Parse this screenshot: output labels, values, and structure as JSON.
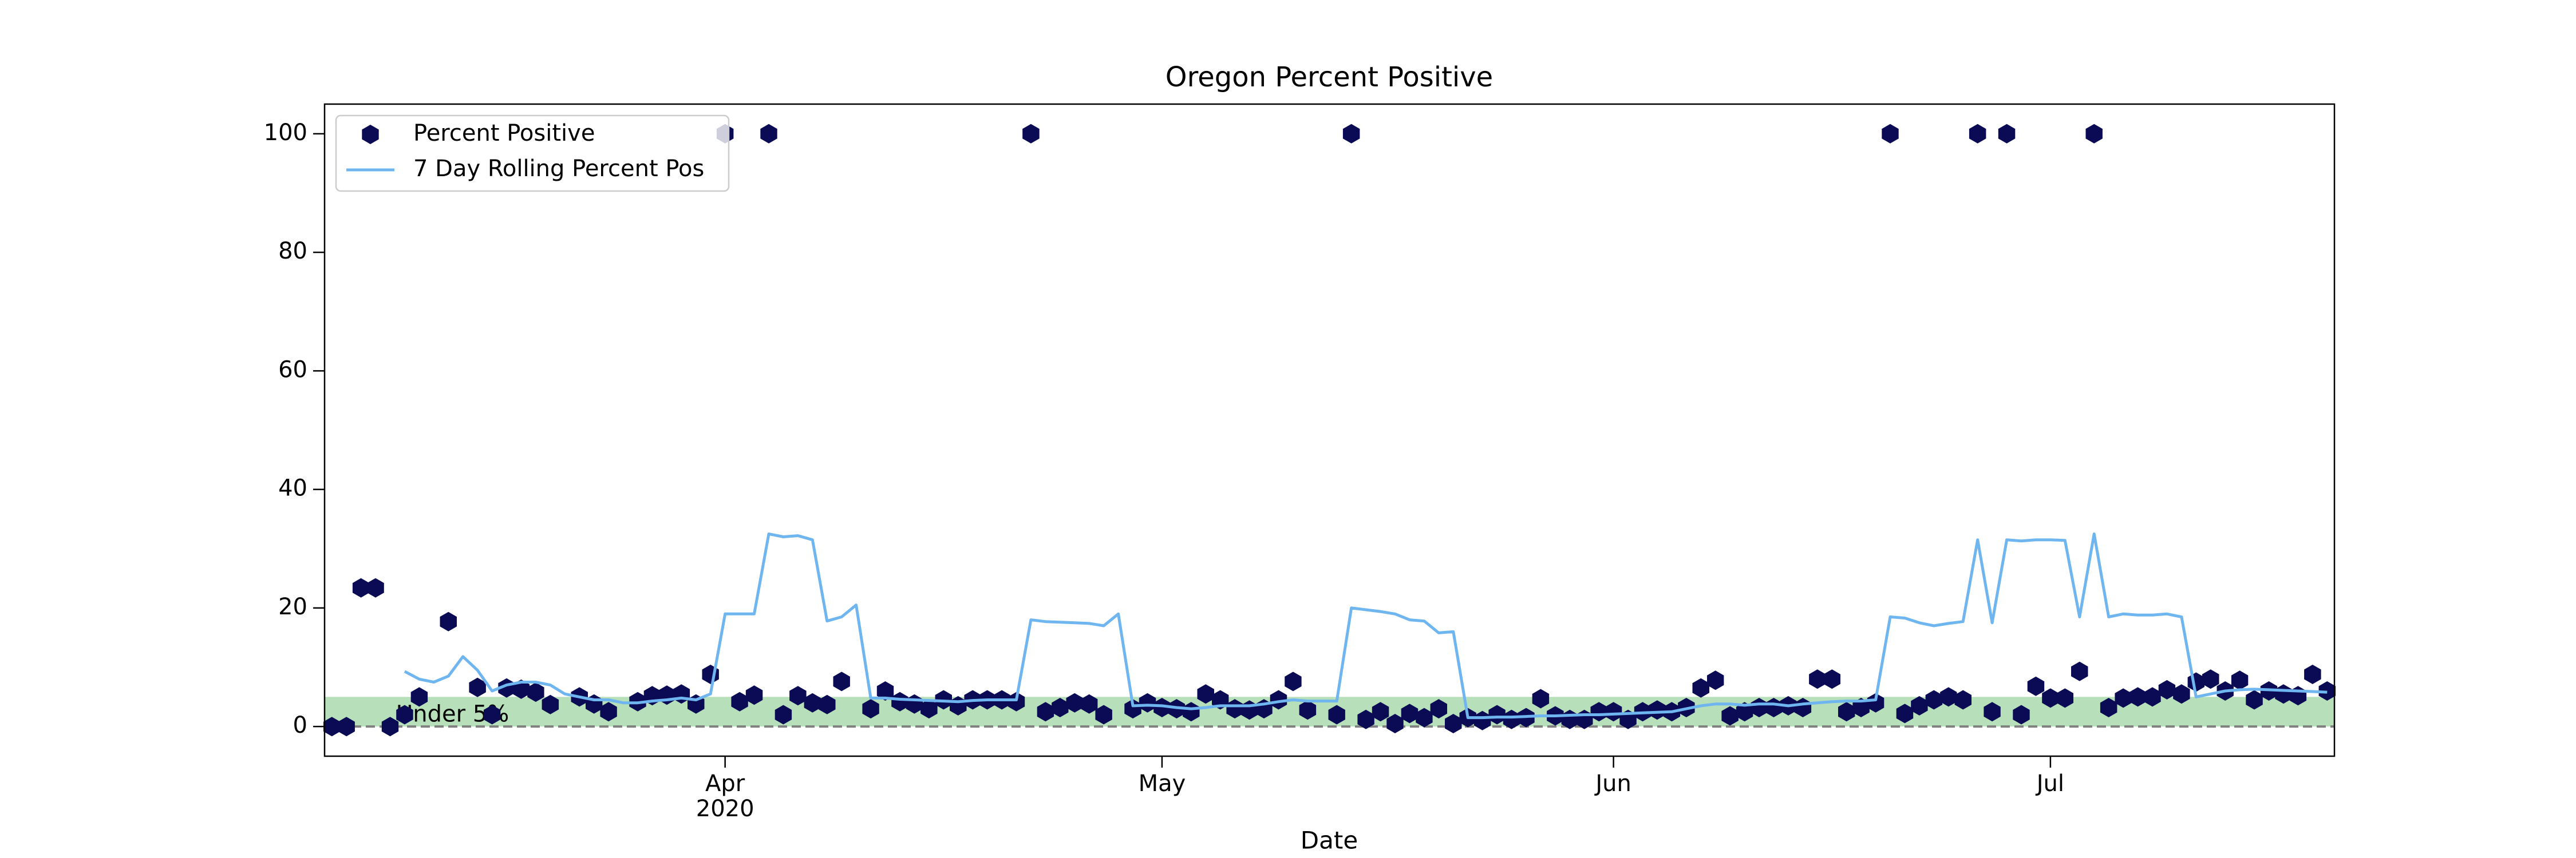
{
  "chart_data": {
    "type": "scatter",
    "title": "Oregon Percent Positive",
    "x_label": "Date",
    "categories": [
      null,
      null,
      null,
      null,
      null,
      null,
      null,
      null,
      null,
      null,
      null,
      null,
      null,
      null,
      null,
      null,
      null,
      null,
      null,
      null,
      null,
      null,
      null,
      null,
      null,
      null,
      null,
      "Apr\n2020",
      null,
      null,
      null,
      null,
      null,
      null,
      null,
      null,
      null,
      null,
      null,
      null,
      null,
      null,
      null,
      null,
      null,
      null,
      null,
      null,
      null,
      null,
      null,
      null,
      null,
      null,
      null,
      null,
      null,
      "May",
      null,
      null,
      null,
      null,
      null,
      null,
      null,
      null,
      null,
      null,
      null,
      null,
      null,
      null,
      null,
      null,
      null,
      null,
      null,
      null,
      null,
      null,
      null,
      null,
      null,
      null,
      null,
      null,
      null,
      null,
      "Jun",
      null,
      null,
      null,
      null,
      null,
      null,
      null,
      null,
      null,
      null,
      null,
      null,
      null,
      null,
      null,
      null,
      null,
      null,
      null,
      null,
      null,
      null,
      null,
      null,
      null,
      null,
      null,
      null,
      null,
      "Jul",
      null,
      null,
      null,
      null,
      null,
      null,
      null,
      null,
      null,
      null,
      null,
      null,
      null,
      null,
      null,
      null,
      null,
      null,
      null
    ],
    "series": [
      {
        "name": "Percent Positive",
        "type": "scatter",
        "color": "#0b0b55",
        "values": [
          0,
          0,
          23.4,
          23.4,
          0,
          2,
          5,
          null,
          17.7,
          null,
          6.6,
          2,
          6.5,
          6.3,
          5.8,
          3.7,
          null,
          5,
          3.8,
          2.5,
          null,
          4.2,
          5.2,
          5.3,
          5.5,
          3.8,
          8.8,
          100,
          4.2,
          5.3,
          100,
          2,
          5.2,
          4,
          3.7,
          7.6,
          null,
          3,
          6,
          4.2,
          3.8,
          3,
          4.5,
          3.5,
          4.5,
          4.5,
          4.5,
          4.2,
          100,
          2.5,
          3.2,
          4,
          3.8,
          2,
          null,
          3,
          4,
          3.2,
          3,
          2.5,
          5.5,
          4.5,
          3,
          2.8,
          3,
          4.5,
          7.6,
          2.8,
          null,
          2,
          100,
          1.2,
          2.5,
          0.5,
          2.2,
          1.5,
          3,
          0.5,
          1.5,
          1,
          2,
          1.2,
          1.5,
          4.7,
          1.8,
          1.2,
          1.2,
          2.5,
          2.5,
          1.2,
          2.5,
          2.8,
          2.5,
          3.2,
          6.5,
          7.8,
          1.8,
          2.5,
          3.2,
          3.2,
          3.5,
          3.2,
          8,
          8,
          2.5,
          3.2,
          4,
          100,
          2.2,
          3.5,
          4.5,
          5,
          4.5,
          100,
          2.5,
          100,
          2,
          6.8,
          4.8,
          4.8,
          9.3,
          100,
          3.2,
          4.8,
          5,
          5,
          6.2,
          5.5,
          7.5,
          8,
          6,
          7.8,
          4.5,
          6,
          5.5,
          5.2,
          8.8,
          6
        ]
      },
      {
        "name": "7 Day Rolling Percent Pos",
        "type": "line",
        "color": "#6fb6f0",
        "values": [
          null,
          null,
          null,
          null,
          null,
          9.3,
          8,
          7.5,
          8.5,
          11.8,
          9.5,
          6,
          7,
          7.5,
          7.5,
          7,
          5.5,
          5,
          4.5,
          4.5,
          4,
          4,
          4.3,
          4.5,
          4.8,
          4.5,
          5.5,
          19,
          19,
          19,
          32.5,
          32,
          32.2,
          31.5,
          17.8,
          18.5,
          20.5,
          4.8,
          4.8,
          4.6,
          4.5,
          4.4,
          4.3,
          4.2,
          4.4,
          4.5,
          4.5,
          4.5,
          18,
          17.7,
          17.6,
          17.5,
          17.4,
          17,
          19,
          3.5,
          3.6,
          3.5,
          3.2,
          3,
          3.2,
          3.5,
          3.5,
          3.5,
          3.8,
          4.2,
          4.5,
          4.3,
          4.3,
          4.3,
          20,
          19.7,
          19.4,
          19,
          18,
          17.8,
          15.8,
          16,
          1.5,
          1.5,
          1.6,
          1.6,
          1.7,
          1.8,
          1.8,
          1.9,
          2,
          2,
          2.1,
          2.2,
          2.3,
          2.4,
          2.5,
          3,
          3.5,
          3.8,
          3.8,
          3.6,
          3.8,
          3.8,
          3.5,
          3.8,
          4,
          4.2,
          4.3,
          4.3,
          4.5,
          18.5,
          18.3,
          17.5,
          17,
          17.4,
          17.7,
          31.5,
          17.5,
          31.5,
          31.3,
          31.5,
          31.5,
          31.4,
          18.5,
          32.5,
          18.5,
          19,
          18.8,
          18.8,
          19,
          18.5,
          5,
          5.5,
          6,
          6.2,
          6.3,
          6.2,
          6.1,
          6,
          5.9,
          5.8
        ]
      }
    ],
    "span": {
      "y0": 0,
      "y1": 5,
      "label": "Under 5%",
      "color": "#4caf50",
      "opacity": 0.4
    },
    "reference_line": {
      "y": 0,
      "color": "#808080",
      "style": "dashed"
    },
    "ylim": [
      -5,
      105
    ],
    "yticks": [
      0,
      20,
      40,
      60,
      80,
      100
    ],
    "grid": false,
    "legend": "upper left"
  }
}
